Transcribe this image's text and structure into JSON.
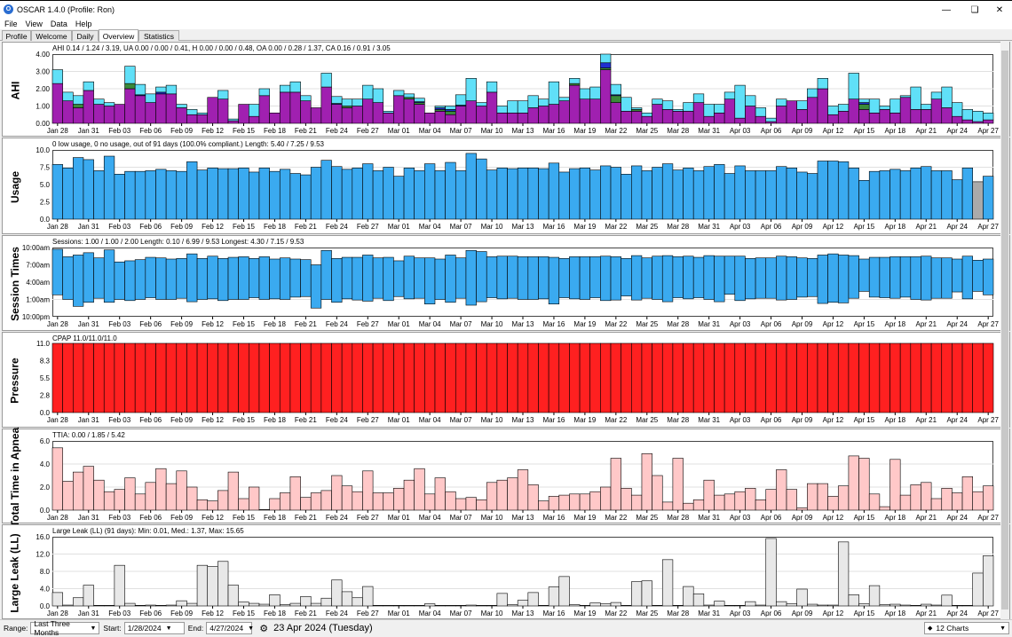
{
  "window": {
    "title": "OSCAR 1.4.0 (Profile: Ron)",
    "icon": "oscar-logo-icon",
    "controls": [
      "minimize-icon",
      "restore-icon",
      "close-icon"
    ]
  },
  "menu": [
    "File",
    "View",
    "Data",
    "Help"
  ],
  "tabs": [
    {
      "label": "Profile"
    },
    {
      "label": "Welcome"
    },
    {
      "label": "Daily"
    },
    {
      "label": "Overview",
      "active": true
    },
    {
      "label": "Statistics"
    }
  ],
  "xlabels": [
    "Jan 28",
    "Jan 31",
    "Feb 03",
    "Feb 06",
    "Feb 09",
    "Feb 12",
    "Feb 15",
    "Feb 18",
    "Feb 21",
    "Feb 24",
    "Feb 27",
    "Mar 01",
    "Mar 04",
    "Mar 07",
    "Mar 10",
    "Mar 13",
    "Mar 16",
    "Mar 19",
    "Mar 22",
    "Mar 25",
    "Mar 28",
    "Mar 31",
    "Apr 03",
    "Apr 06",
    "Apr 09",
    "Apr 12",
    "Apr 15",
    "Apr 18",
    "Apr 21",
    "Apr 24",
    "Apr 27"
  ],
  "colors": {
    "ahi_purple": "#a020b0",
    "ahi_cyan": "#60e0f8",
    "ahi_blue": "#2030d0",
    "ahi_green": "#3a8a3a",
    "usage_blue": "#3aaaf0",
    "pressure_red": "#ff2020",
    "ttia_pink": "#ffc8c8",
    "leak_gray": "#e8e8e8"
  },
  "charts": [
    {
      "name": "ahi-chart",
      "label": "AHI",
      "summary": "AHI 0.14 / 1.24 / 3.19, UA 0.00 / 0.00 / 0.41, H 0.00 / 0.00 / 0.48, OA 0.00 / 0.28 / 1.37, CA 0.16 / 0.91 / 3.05",
      "yticks": [
        "4.00",
        "3.00",
        "2.00",
        "1.00",
        "0.00"
      ]
    },
    {
      "name": "usage-chart",
      "label": "Usage",
      "summary": "0 low usage, 0 no usage, out of 91 days (100.0% compliant.) Length: 5.40 / 7.25 / 9.53",
      "yticks": [
        "10.0",
        "7.5",
        "5.0",
        "2.5",
        "0.0"
      ]
    },
    {
      "name": "session-times-chart",
      "label": "Session Times",
      "summary": "Sessions: 1.00 / 1.00 / 2.00 Length: 0.10 / 6.99 / 9.53 Longest: 4.30 / 7.15 / 9.53",
      "yticks": [
        "10:00am",
        "7:00am",
        "4:00am",
        "1:00am",
        "10:00pm"
      ]
    },
    {
      "name": "pressure-chart",
      "label": "Pressure",
      "summary": "CPAP 11.0/11.0/11.0",
      "yticks": [
        "11.0",
        "8.3",
        "5.5",
        "2.8",
        "0.0"
      ]
    },
    {
      "name": "ttia-chart",
      "label": "Total Time in Apnea",
      "summary": "TTIA: 0.00 / 1.85 / 5.42",
      "yticks": [
        "6.0",
        "4.0",
        "2.0",
        "0.0"
      ]
    },
    {
      "name": "large-leak-chart",
      "label": "Large Leak (LL)",
      "summary": "Large Leak (LL) (91 days):  Min: 0.01, Med.: 1.37, Max: 15.65",
      "yticks": [
        "16.0",
        "12.0",
        "8.0",
        "4.0",
        "0.0"
      ]
    }
  ],
  "chart_data": [
    {
      "type": "bar",
      "title": "AHI",
      "ylim": [
        0,
        4
      ],
      "stacked": true,
      "x_first": "Jan 28",
      "n_days": 91,
      "series": [
        {
          "name": "CA",
          "values": [
            2.3,
            1.3,
            0.9,
            1.9,
            1.1,
            1.0,
            1.1,
            2.0,
            1.6,
            1.2,
            1.7,
            1.7,
            0.9,
            0.5,
            0.5,
            1.5,
            1.4,
            0.15,
            1.1,
            0.4,
            1.6,
            0.6,
            1.8,
            1.8,
            1.3,
            0.9,
            2.1,
            1.1,
            0.9,
            1.0,
            1.4,
            1.2,
            0.6,
            1.6,
            1.4,
            1.1,
            0.6,
            0.7,
            0.5,
            1.0,
            1.3,
            1.0,
            1.8,
            0.6,
            0.6,
            0.6,
            0.9,
            1.0,
            1.1,
            1.3,
            2.2,
            1.4,
            1.4,
            3.1,
            1.2,
            0.7,
            0.7,
            0.4,
            1.1,
            0.8,
            0.7,
            0.7,
            1.2,
            0.4,
            0.6,
            1.4,
            0.3,
            1.0,
            0.4,
            0.1,
            1.0,
            1.3,
            0.8,
            1.5,
            2.0,
            0.5,
            0.7,
            1.4,
            0.8,
            0.6,
            0.8,
            0.6,
            1.5,
            0.8,
            0.8,
            1.4,
            0.9,
            0.4,
            0.2,
            0.1,
            0.2
          ]
        },
        {
          "name": "OA",
          "values": [
            0,
            0,
            0.2,
            0,
            0,
            0,
            0,
            0.3,
            0,
            0,
            0,
            0,
            0,
            0,
            0,
            0,
            0,
            0,
            0,
            0,
            0,
            0,
            0,
            0,
            0,
            0,
            0,
            0,
            0.1,
            0,
            0,
            0,
            0,
            0,
            0.1,
            0.1,
            0,
            0.1,
            0.2,
            0,
            0,
            0,
            0,
            0,
            0,
            0,
            0,
            0,
            0,
            0,
            0.1,
            0,
            0,
            0.1,
            0.4,
            0,
            0.1,
            0,
            0,
            0,
            0,
            0,
            0,
            0,
            0,
            0,
            0,
            0,
            0,
            0,
            0,
            0,
            0,
            0,
            0,
            0,
            0,
            0,
            0.3,
            0,
            0,
            0,
            0,
            0,
            0,
            0,
            0,
            0,
            0,
            0,
            0
          ]
        },
        {
          "name": "H",
          "values": [
            0,
            0,
            0,
            0,
            0,
            0,
            0,
            0,
            0.05,
            0,
            0.1,
            0,
            0,
            0,
            0,
            0,
            0,
            0,
            0,
            0,
            0,
            0,
            0,
            0,
            0,
            0,
            0,
            0.05,
            0,
            0,
            0,
            0,
            0,
            0,
            0,
            0.05,
            0,
            0.1,
            0.1,
            0.05,
            0,
            0,
            0,
            0,
            0,
            0,
            0,
            0,
            0,
            0,
            0,
            0,
            0,
            0.3,
            0.05,
            0,
            0,
            0,
            0,
            0,
            0,
            0,
            0,
            0,
            0,
            0,
            0,
            0,
            0,
            0,
            0,
            0,
            0,
            0,
            0,
            0,
            0,
            0,
            0.1,
            0,
            0,
            0,
            0,
            0,
            0,
            0,
            0,
            0,
            0,
            0,
            0
          ]
        },
        {
          "name": "UA",
          "values": [
            0.8,
            0.5,
            0.5,
            0.5,
            0.3,
            0.2,
            0,
            1.0,
            0.6,
            0.5,
            0.3,
            0.5,
            0.2,
            0.3,
            0.1,
            0,
            0.5,
            0.1,
            0,
            0.7,
            0.4,
            0,
            0.4,
            0.6,
            0.3,
            0,
            0.8,
            0.4,
            0.4,
            0.4,
            0.8,
            0.8,
            0.1,
            0.3,
            0.2,
            0.2,
            0,
            0.1,
            0.2,
            0.6,
            1.3,
            0.2,
            0.6,
            0.4,
            0.7,
            0.7,
            0.7,
            0.4,
            1.3,
            0.2,
            0.3,
            0.6,
            0.7,
            0.5,
            0.6,
            0.8,
            0.1,
            0.2,
            0.3,
            0.5,
            0.1,
            0.5,
            0.5,
            0.7,
            0.5,
            0.4,
            1.9,
            0.6,
            0.5,
            0.2,
            0.4,
            0,
            0.5,
            0.5,
            0.6,
            0.5,
            0.4,
            1.5,
            0.2,
            0.8,
            0.2,
            0.8,
            0.1,
            1.3,
            0.3,
            0.4,
            1.2,
            0.8,
            0.6,
            0.6,
            0.4
          ]
        }
      ]
    },
    {
      "type": "bar",
      "title": "Usage",
      "ylim": [
        0,
        10
      ],
      "x_first": "Jan 28",
      "n_days": 91,
      "values": [
        7.9,
        7.4,
        8.9,
        8.6,
        7.0,
        9.1,
        6.5,
        6.9,
        6.9,
        7.0,
        7.2,
        7.0,
        6.9,
        8.3,
        7.1,
        7.4,
        7.3,
        7.3,
        7.4,
        6.8,
        7.4,
        6.9,
        7.2,
        6.6,
        6.4,
        7.5,
        8.5,
        7.6,
        7.2,
        7.4,
        8.0,
        7.0,
        7.5,
        6.2,
        7.4,
        7.0,
        8.0,
        7.0,
        8.2,
        7.0,
        9.5,
        8.7,
        7.1,
        7.4,
        7.3,
        7.4,
        7.4,
        7.3,
        8.1,
        6.8,
        7.3,
        7.4,
        7.1,
        7.7,
        7.5,
        6.5,
        7.7,
        7.0,
        7.5,
        8.0,
        7.1,
        7.4,
        7.0,
        7.6,
        7.9,
        6.6,
        7.7,
        7.0,
        7.0,
        7.0,
        7.6,
        7.4,
        6.8,
        6.6,
        8.4,
        8.4,
        8.3,
        7.4,
        5.6,
        6.9,
        7.0,
        7.2,
        7.0,
        7.4,
        7.6,
        7.0,
        7.0,
        5.7,
        7.4,
        5.4,
        6.2
      ]
    },
    {
      "type": "bar",
      "title": "Session Times",
      "ylim": [
        "10:00pm",
        "10:00am"
      ],
      "x_first": "Jan 28",
      "n_days": 91
    },
    {
      "type": "bar",
      "title": "Pressure",
      "ylim": [
        0,
        11
      ],
      "x_first": "Jan 28",
      "n_days": 91,
      "constant_value": 11.0
    },
    {
      "type": "bar",
      "title": "Total Time in Apnea",
      "ylim": [
        0,
        6
      ],
      "x_first": "Jan 28",
      "n_days": 91,
      "values": [
        5.4,
        2.5,
        3.3,
        3.8,
        2.6,
        1.6,
        1.8,
        2.8,
        1.4,
        2.4,
        3.6,
        2.3,
        3.4,
        2.0,
        0.9,
        0.8,
        1.7,
        3.3,
        1.0,
        2.0,
        0.05,
        1.0,
        1.5,
        2.9,
        1.1,
        1.5,
        1.7,
        3.0,
        2.1,
        1.6,
        3.4,
        1.5,
        1.5,
        1.9,
        2.6,
        3.6,
        1.4,
        2.8,
        1.6,
        1.0,
        1.1,
        0.9,
        2.4,
        2.6,
        2.8,
        3.5,
        2.2,
        0.8,
        1.2,
        1.3,
        1.4,
        1.4,
        1.6,
        2.0,
        4.5,
        1.9,
        1.3,
        4.9,
        3.0,
        0.7,
        4.5,
        0.6,
        0.9,
        2.6,
        1.3,
        1.4,
        1.6,
        1.9,
        0.9,
        1.8,
        3.5,
        1.8,
        0.2,
        2.3,
        2.3,
        1.2,
        2.1,
        4.7,
        4.5,
        1.4,
        0.3,
        4.4,
        1.3,
        2.2,
        2.4,
        1.0,
        1.9,
        1.5,
        2.9,
        1.6,
        2.1
      ]
    },
    {
      "type": "bar",
      "title": "Large Leak (LL)",
      "ylim": [
        0,
        16
      ],
      "x_first": "Jan 28",
      "n_days": 91,
      "values": [
        3.1,
        0.2,
        1.9,
        4.8,
        0.1,
        0.1,
        9.4,
        0.6,
        0.1,
        0.2,
        0.1,
        0.2,
        1.2,
        0.6,
        9.4,
        9.1,
        10.3,
        4.8,
        0.9,
        0.6,
        0.4,
        2.6,
        0.3,
        0.6,
        2.2,
        0.6,
        1.8,
        6.0,
        3.3,
        1.9,
        4.5,
        0.1,
        0.1,
        0.1,
        0.1,
        0.1,
        0.5,
        0.1,
        0.1,
        0.1,
        0.2,
        0.1,
        0.1,
        2.9,
        0.3,
        1.3,
        3.1,
        0.1,
        4.4,
        6.8,
        0.3,
        0.1,
        0.7,
        0.5,
        0.8,
        0.1,
        5.6,
        5.8,
        0.1,
        10.7,
        0.1,
        4.5,
        2.8,
        0.2,
        1.1,
        0.1,
        0.1,
        1.0,
        0.2,
        15.6,
        1.0,
        0.5,
        3.9,
        0.4,
        0.2,
        0.2,
        14.8,
        2.6,
        0.5,
        4.7,
        0.3,
        0.4,
        0.2,
        0.1,
        0.4,
        0.2,
        2.5,
        0.1,
        0.1,
        7.6,
        11.6
      ]
    }
  ],
  "statusbar": {
    "range_label": "Range:",
    "range_value": "Last Three Months",
    "start_label": "Start:",
    "start_value": "1/28/2024",
    "end_label": "End:",
    "end_value": "4/27/2024",
    "date_display": "23 Apr 2024 (Tuesday)",
    "charts_value": "12 Charts",
    "icons": [
      "calendar-icon",
      "reset-icon",
      "pin-icon"
    ]
  }
}
